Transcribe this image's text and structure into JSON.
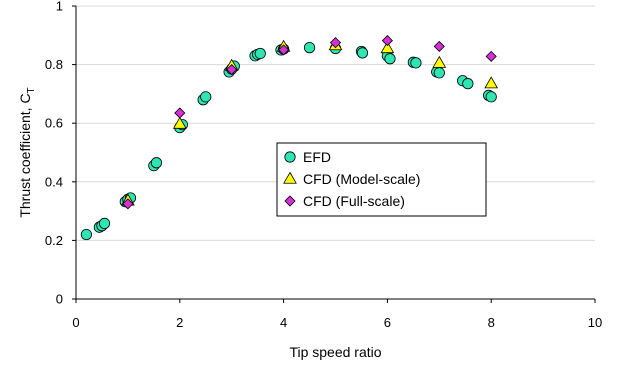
{
  "chart_data": {
    "type": "scatter",
    "xlabel": "Tip speed ratio",
    "ylabel": "Thrust coefficient, C",
    "ylabel_subscript": "T",
    "xlim": [
      0,
      10
    ],
    "ylim": [
      0,
      1
    ],
    "xticks": [
      "0",
      "2",
      "4",
      "6",
      "8",
      "10"
    ],
    "yticks": [
      "0",
      "0.2",
      "0.4",
      "0.6",
      "0.8",
      "1"
    ],
    "grid": "horizontal",
    "legend_position": "center-right",
    "series": [
      {
        "name": "EFD",
        "marker": "circle",
        "color": "#2ee6b4",
        "points": [
          [
            0.2,
            0.22
          ],
          [
            0.45,
            0.245
          ],
          [
            0.5,
            0.25
          ],
          [
            0.55,
            0.258
          ],
          [
            0.95,
            0.332
          ],
          [
            1.0,
            0.34
          ],
          [
            1.05,
            0.345
          ],
          [
            1.5,
            0.455
          ],
          [
            1.55,
            0.465
          ],
          [
            2.0,
            0.585
          ],
          [
            2.05,
            0.595
          ],
          [
            2.45,
            0.68
          ],
          [
            2.5,
            0.69
          ],
          [
            2.95,
            0.775
          ],
          [
            3.0,
            0.785
          ],
          [
            3.05,
            0.795
          ],
          [
            3.45,
            0.83
          ],
          [
            3.5,
            0.835
          ],
          [
            3.55,
            0.838
          ],
          [
            3.95,
            0.85
          ],
          [
            4.0,
            0.853
          ],
          [
            4.5,
            0.858
          ],
          [
            5.0,
            0.855
          ],
          [
            5.5,
            0.845
          ],
          [
            5.52,
            0.84
          ],
          [
            6.0,
            0.83
          ],
          [
            6.05,
            0.82
          ],
          [
            6.5,
            0.808
          ],
          [
            6.55,
            0.806
          ],
          [
            6.95,
            0.775
          ],
          [
            7.0,
            0.772
          ],
          [
            7.45,
            0.745
          ],
          [
            7.55,
            0.735
          ],
          [
            7.95,
            0.695
          ],
          [
            8.0,
            0.69
          ]
        ]
      },
      {
        "name": "CFD (Model-scale)",
        "marker": "triangle",
        "color": "#ffff00",
        "points": [
          [
            1.0,
            0.335
          ],
          [
            2.0,
            0.597
          ],
          [
            3.0,
            0.795
          ],
          [
            4.0,
            0.86
          ],
          [
            5.0,
            0.865
          ],
          [
            6.0,
            0.855
          ],
          [
            7.0,
            0.805
          ],
          [
            8.0,
            0.735
          ]
        ]
      },
      {
        "name": "CFD (Full-scale)",
        "marker": "diamond",
        "color": "#d62fd6",
        "points": [
          [
            1.0,
            0.325
          ],
          [
            2.0,
            0.635
          ],
          [
            3.0,
            0.783
          ],
          [
            4.0,
            0.85
          ],
          [
            5.0,
            0.875
          ],
          [
            6.0,
            0.882
          ],
          [
            7.0,
            0.862
          ],
          [
            8.0,
            0.828
          ]
        ]
      }
    ]
  }
}
